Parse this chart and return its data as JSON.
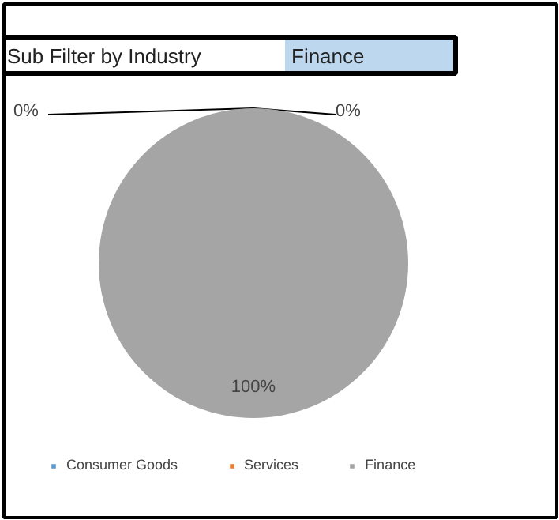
{
  "chart_data": {
    "type": "pie",
    "annotations": [
      "Sub Filter by Industry",
      "Finance"
    ],
    "categories": [
      "Consumer Goods",
      "Services",
      "Finance"
    ],
    "values": [
      0,
      0,
      100
    ],
    "colors": [
      "#5b9bd5",
      "#ed7d31",
      "#a5a5a5"
    ],
    "value_labels": [
      "0%",
      "0%",
      "100%"
    ],
    "legend": "bottom"
  }
}
